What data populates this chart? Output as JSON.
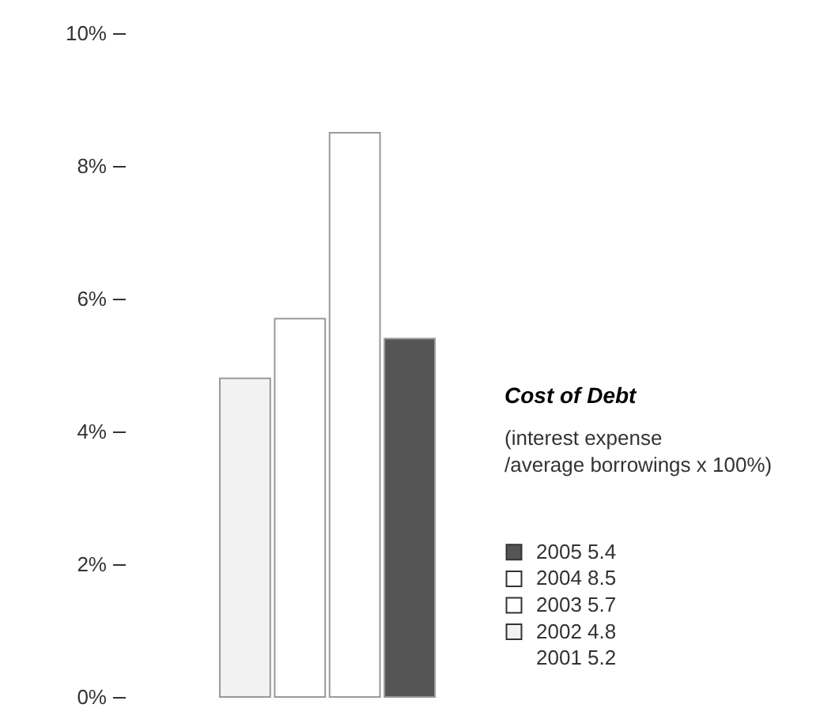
{
  "chart_data": {
    "type": "bar",
    "categories": [
      null,
      null,
      null,
      null
    ],
    "values": [
      4.8,
      5.7,
      8.5,
      5.4
    ],
    "colors": [
      "#f2f2f2",
      "#ffffff",
      "#ffffff",
      "#555555"
    ],
    "legend_title": "Cost of Debt",
    "subtitle": "(interest expense\n/average borrowings x 100%)",
    "annotations": [
      "2002 4.8",
      "2003 5.7",
      "2004 8.5",
      "2005 5.4",
      "2001 5.2"
    ],
    "ylim": [
      0,
      10
    ],
    "yticks": [
      {
        "value": 0,
        "label": "0%"
      },
      {
        "value": 2,
        "label": "2%"
      },
      {
        "value": 4,
        "label": "4%"
      },
      {
        "value": 6,
        "label": "6%"
      },
      {
        "value": 8,
        "label": "8%"
      },
      {
        "value": 10,
        "label": "10%"
      }
    ],
    "grid": false
  }
}
